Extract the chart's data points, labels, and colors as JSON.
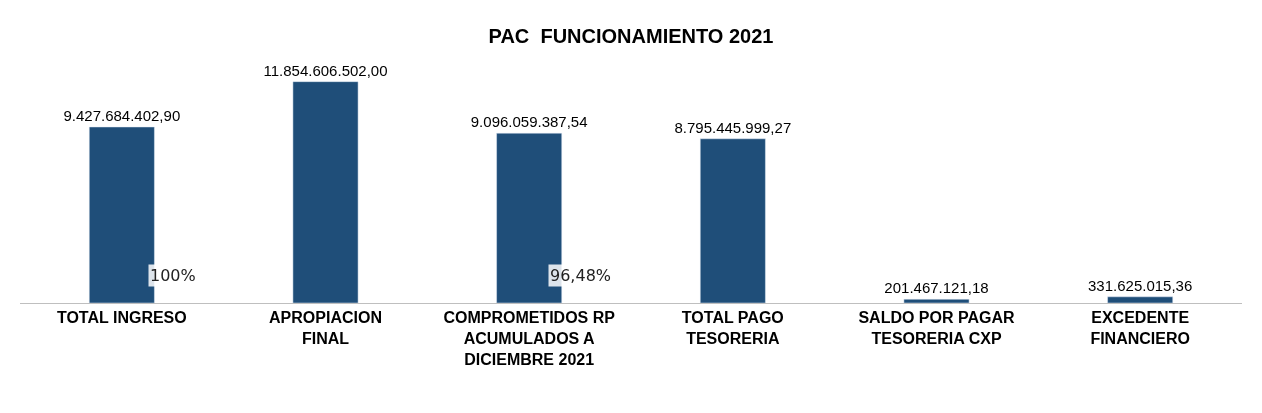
{
  "chart_data": {
    "type": "bar",
    "title": "PAC  FUNCIONAMIENTO 2021",
    "categories": [
      "TOTAL INGRESO",
      "APROPIACION FINAL",
      "COMPROMETIDOS RP ACUMULADOS A DICIEMBRE 2021",
      "TOTAL PAGO TESORERIA",
      "SALDO POR PAGAR TESORERIA CXP",
      "EXCEDENTE FINANCIERO"
    ],
    "values": [
      9427684402.9,
      11854606502.0,
      9096059387.54,
      8795445999.27,
      201467121.18,
      331625015.36
    ],
    "value_labels": [
      "9.427.684.402,90",
      "11.854.606.502,00",
      "9.096.059.387,54",
      "8.795.445.999,27",
      "201.467.121,18",
      "331.625.015,36"
    ],
    "color": "#1f4e79",
    "annotations": [
      "100%",
      "96,48%"
    ],
    "legend": false
  }
}
